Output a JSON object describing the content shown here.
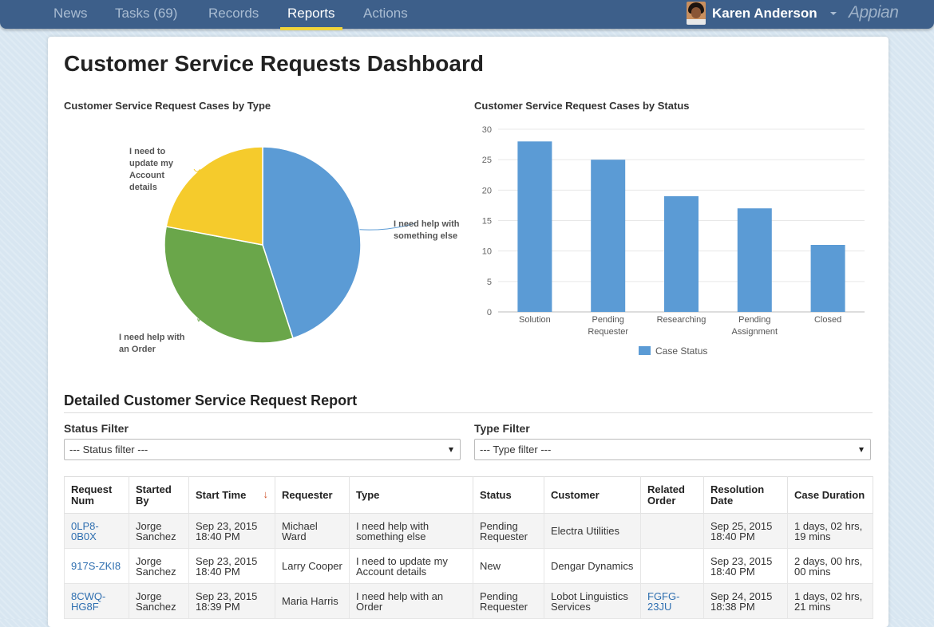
{
  "nav": {
    "tabs": [
      {
        "label": "News"
      },
      {
        "label": "Tasks (69)"
      },
      {
        "label": "Records"
      },
      {
        "label": "Reports"
      },
      {
        "label": "Actions"
      }
    ],
    "active_tab": "Reports",
    "user_name": "Karen Anderson",
    "logo_text": "Appian"
  },
  "page": {
    "title": "Customer Service Requests Dashboard"
  },
  "colors": {
    "nav_bg": "#3d5f8a",
    "accent": "#f0d43c",
    "blue": "#5b9bd5",
    "green": "#6aa64a",
    "yellow": "#f5cb2c",
    "link": "#2f6fb0"
  },
  "chart_data": [
    {
      "type": "pie",
      "title": "Customer Service Request Cases by Type",
      "slices": [
        {
          "label": "I need help with something else",
          "value": 45,
          "color": "#5b9bd5"
        },
        {
          "label": "I need help with an Order",
          "value": 33,
          "color": "#6aa64a"
        },
        {
          "label": "I need to update my Account details",
          "value": 22,
          "color": "#f5cb2c"
        }
      ]
    },
    {
      "type": "bar",
      "title": "Customer Service Request Cases by Status",
      "categories": [
        "Solution",
        "Pending Requester",
        "Researching",
        "Pending Assignment",
        "Closed"
      ],
      "series": [
        {
          "name": "Case Status",
          "values": [
            28,
            25,
            19,
            17,
            11
          ],
          "color": "#5b9bd5"
        }
      ],
      "ylim": [
        0,
        30
      ],
      "yticks": [
        0,
        5,
        10,
        15,
        20,
        25,
        30
      ],
      "grid": true,
      "legend": "bottom-center"
    }
  ],
  "report": {
    "title": "Detailed Customer Service Request Report",
    "status_filter": {
      "label": "Status Filter",
      "value": "--- Status filter ---"
    },
    "type_filter": {
      "label": "Type Filter",
      "value": "--- Type filter ---"
    },
    "columns": [
      "Request Num",
      "Started By",
      "Start Time",
      "Requester",
      "Type",
      "Status",
      "Customer",
      "Related Order",
      "Resolution Date",
      "Case Duration"
    ],
    "sort_indicator": "↓",
    "rows": [
      {
        "request_num": "0LP8-0B0X",
        "started_by": "Jorge Sanchez",
        "start_time": "Sep 23, 2015 18:40 PM",
        "requester": "Michael Ward",
        "type": "I need help with something else",
        "status": "Pending Requester",
        "customer": "Electra Utilities",
        "related_order": "",
        "resolution_date": "Sep 25, 2015 18:40 PM",
        "case_duration": "1 days, 02 hrs, 19 mins"
      },
      {
        "request_num": "917S-ZKI8",
        "started_by": "Jorge Sanchez",
        "start_time": "Sep 23, 2015 18:40 PM",
        "requester": "Larry Cooper",
        "type": "I need to update my Account details",
        "status": "New",
        "customer": "Dengar Dynamics",
        "related_order": "",
        "resolution_date": "Sep 23, 2015 18:40 PM",
        "case_duration": "2 days, 00 hrs, 00 mins"
      },
      {
        "request_num": "8CWQ-HG8F",
        "started_by": "Jorge Sanchez",
        "start_time": "Sep 23, 2015 18:39 PM",
        "requester": "Maria Harris",
        "type": "I need help with an Order",
        "status": "Pending Requester",
        "customer": "Lobot Linguistics Services",
        "related_order": "FGFG-23JU",
        "resolution_date": "Sep 24, 2015 18:38 PM",
        "case_duration": "1 days, 02 hrs, 21 mins"
      }
    ]
  }
}
